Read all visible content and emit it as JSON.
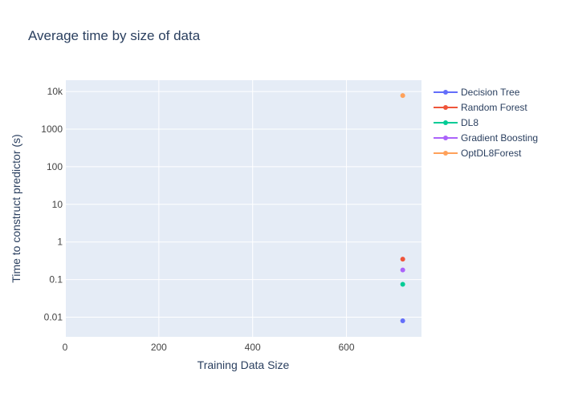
{
  "chart_data": {
    "type": "scatter",
    "title": "Average time by size of data",
    "xlabel": "Training Data Size",
    "ylabel": "Time to construct predictor (s)",
    "x_scale": "linear",
    "y_scale": "log",
    "xlim": [
      0,
      760
    ],
    "ylim": [
      0.003,
      20000
    ],
    "x_ticks": [
      0,
      200,
      400,
      600
    ],
    "x_tick_labels": [
      "0",
      "200",
      "400",
      "600"
    ],
    "y_ticks": [
      0.01,
      0.1,
      1,
      10,
      100,
      1000,
      10000
    ],
    "y_tick_labels": [
      "0.01",
      "0.1",
      "1",
      "10",
      "100",
      "1000",
      "10k"
    ],
    "grid": true,
    "legend_position": "right",
    "series": [
      {
        "name": "Decision Tree",
        "color": "#636efa",
        "x": [
          720
        ],
        "y": [
          0.008
        ]
      },
      {
        "name": "Random Forest",
        "color": "#ef553b",
        "x": [
          720
        ],
        "y": [
          0.35
        ]
      },
      {
        "name": "DL8",
        "color": "#00cc96",
        "x": [
          720
        ],
        "y": [
          0.075
        ]
      },
      {
        "name": "Gradient Boosting",
        "color": "#ab63fa",
        "x": [
          720
        ],
        "y": [
          0.18
        ]
      },
      {
        "name": "OptDL8Forest",
        "color": "#ffa15a",
        "x": [
          720
        ],
        "y": [
          7800
        ]
      }
    ],
    "colors": {
      "plot_bg": "#e5ecf6",
      "grid": "#ffffff",
      "text": "#2a3f5f",
      "tick_text": "#444444"
    }
  }
}
